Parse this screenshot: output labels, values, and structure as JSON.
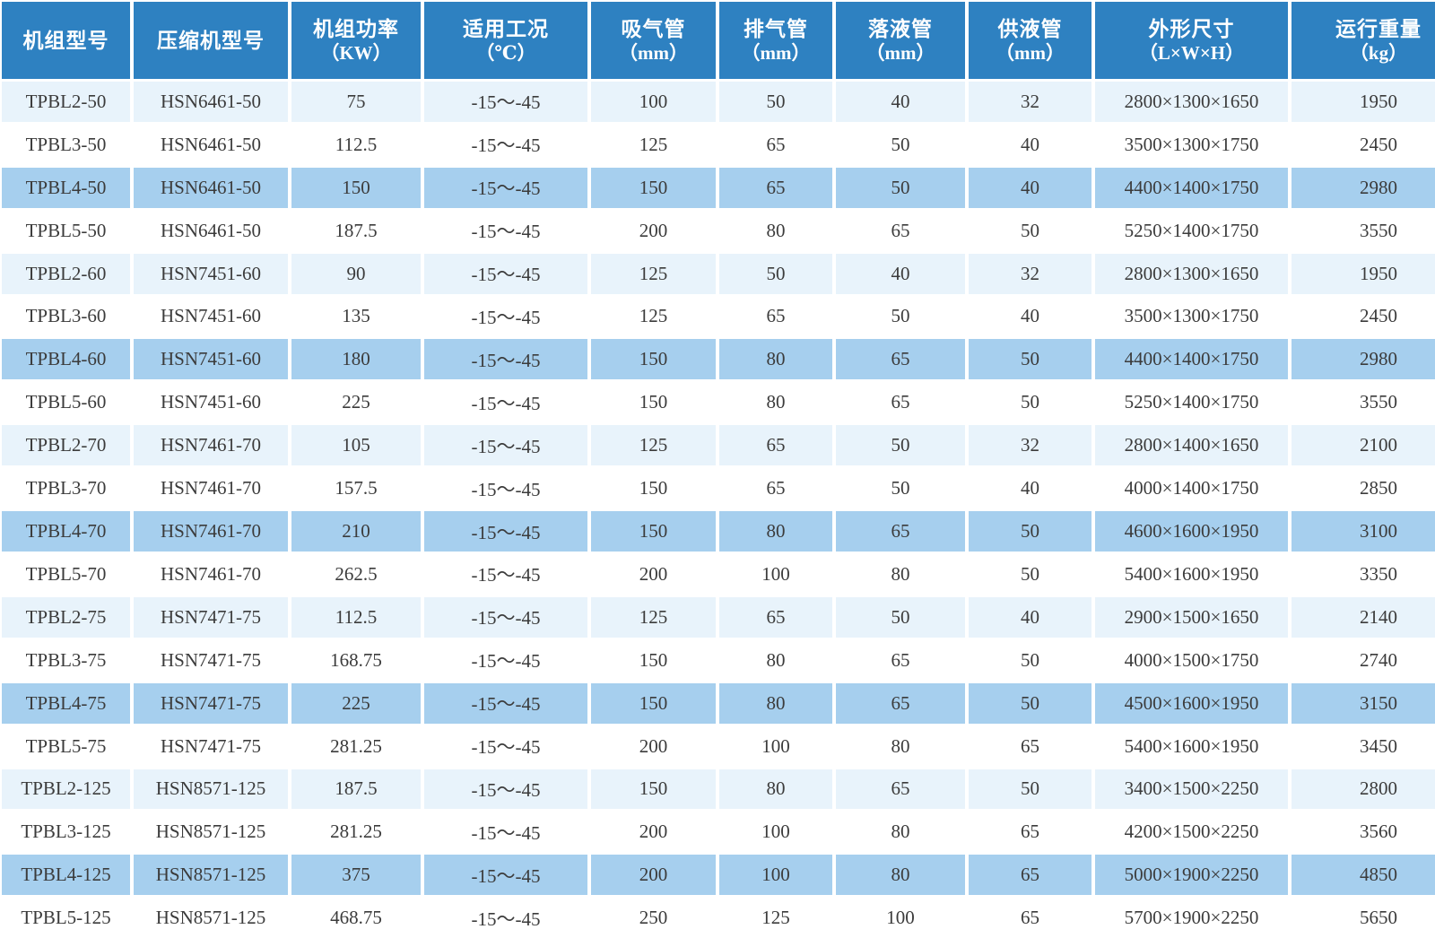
{
  "colors": {
    "header_bg": "#2e81c1",
    "header_text": "#ffffff",
    "row_light": "#e8f3fb",
    "row_medium": "#a6cfee",
    "row_white": "#ffffff",
    "body_text": "#3b3b3b",
    "separator": "#ffffff"
  },
  "chart_data": {
    "type": "table",
    "title": "",
    "columns": [
      {
        "key": "unit-model",
        "label": "机组型号",
        "unit": ""
      },
      {
        "key": "compressor-model",
        "label": "压缩机型号",
        "unit": ""
      },
      {
        "key": "unit-power",
        "label": "机组功率",
        "unit": "（KW）"
      },
      {
        "key": "working-condition",
        "label": "适用工况",
        "unit": "（℃）"
      },
      {
        "key": "suction-pipe",
        "label": "吸气管",
        "unit": "（mm）"
      },
      {
        "key": "discharge-pipe",
        "label": "排气管",
        "unit": "（mm）"
      },
      {
        "key": "liquid-drop-pipe",
        "label": "落液管",
        "unit": "（mm）"
      },
      {
        "key": "liquid-supply-pipe",
        "label": "供液管",
        "unit": "（mm）"
      },
      {
        "key": "dimensions",
        "label": "外形尺寸",
        "unit": "（L×W×H）"
      },
      {
        "key": "running-weight",
        "label": "运行重量",
        "unit": "（kg）"
      }
    ],
    "rows": [
      [
        "TPBL2-50",
        "HSN6461-50",
        "75",
        "-15～-45",
        "100",
        "50",
        "40",
        "32",
        "2800×1300×1650",
        "1950"
      ],
      [
        "TPBL3-50",
        "HSN6461-50",
        "112.5",
        "-15～-45",
        "125",
        "65",
        "50",
        "40",
        "3500×1300×1750",
        "2450"
      ],
      [
        "TPBL4-50",
        "HSN6461-50",
        "150",
        "-15～-45",
        "150",
        "65",
        "50",
        "40",
        "4400×1400×1750",
        "2980"
      ],
      [
        "TPBL5-50",
        "HSN6461-50",
        "187.5",
        "-15～-45",
        "200",
        "80",
        "65",
        "50",
        "5250×1400×1750",
        "3550"
      ],
      [
        "TPBL2-60",
        "HSN7451-60",
        "90",
        "-15～-45",
        "125",
        "50",
        "40",
        "32",
        "2800×1300×1650",
        "1950"
      ],
      [
        "TPBL3-60",
        "HSN7451-60",
        "135",
        "-15～-45",
        "125",
        "65",
        "50",
        "40",
        "3500×1300×1750",
        "2450"
      ],
      [
        "TPBL4-60",
        "HSN7451-60",
        "180",
        "-15～-45",
        "150",
        "80",
        "65",
        "50",
        "4400×1400×1750",
        "2980"
      ],
      [
        "TPBL5-60",
        "HSN7451-60",
        "225",
        "-15～-45",
        "150",
        "80",
        "65",
        "50",
        "5250×1400×1750",
        "3550"
      ],
      [
        "TPBL2-70",
        "HSN7461-70",
        "105",
        "-15～-45",
        "125",
        "65",
        "50",
        "32",
        "2800×1400×1650",
        "2100"
      ],
      [
        "TPBL3-70",
        "HSN7461-70",
        "157.5",
        "-15～-45",
        "150",
        "65",
        "50",
        "40",
        "4000×1400×1750",
        "2850"
      ],
      [
        "TPBL4-70",
        "HSN7461-70",
        "210",
        "-15～-45",
        "150",
        "80",
        "65",
        "50",
        "4600×1600×1950",
        "3100"
      ],
      [
        "TPBL5-70",
        "HSN7461-70",
        "262.5",
        "-15～-45",
        "200",
        "100",
        "80",
        "50",
        "5400×1600×1950",
        "3350"
      ],
      [
        "TPBL2-75",
        "HSN7471-75",
        "112.5",
        "-15～-45",
        "125",
        "65",
        "50",
        "40",
        "2900×1500×1650",
        "2140"
      ],
      [
        "TPBL3-75",
        "HSN7471-75",
        "168.75",
        "-15～-45",
        "150",
        "80",
        "65",
        "50",
        "4000×1500×1750",
        "2740"
      ],
      [
        "TPBL4-75",
        "HSN7471-75",
        "225",
        "-15～-45",
        "150",
        "80",
        "65",
        "50",
        "4500×1600×1950",
        "3150"
      ],
      [
        "TPBL5-75",
        "HSN7471-75",
        "281.25",
        "-15～-45",
        "200",
        "100",
        "80",
        "65",
        "5400×1600×1950",
        "3450"
      ],
      [
        "TPBL2-125",
        "HSN8571-125",
        "187.5",
        "-15～-45",
        "150",
        "80",
        "65",
        "50",
        "3400×1500×2250",
        "2800"
      ],
      [
        "TPBL3-125",
        "HSN8571-125",
        "281.25",
        "-15～-45",
        "200",
        "100",
        "80",
        "65",
        "4200×1500×2250",
        "3560"
      ],
      [
        "TPBL4-125",
        "HSN8571-125",
        "375",
        "-15～-45",
        "200",
        "100",
        "80",
        "65",
        "5000×1900×2250",
        "4850"
      ],
      [
        "TPBL5-125",
        "HSN8571-125",
        "468.75",
        "-15～-45",
        "250",
        "125",
        "100",
        "65",
        "5700×1900×2250",
        "5650"
      ]
    ],
    "layout_hints": {
      "row_shading_cycle": [
        "light",
        "white",
        "medium",
        "white"
      ],
      "grid": "white separators between all cells",
      "header_rows": 1
    }
  }
}
